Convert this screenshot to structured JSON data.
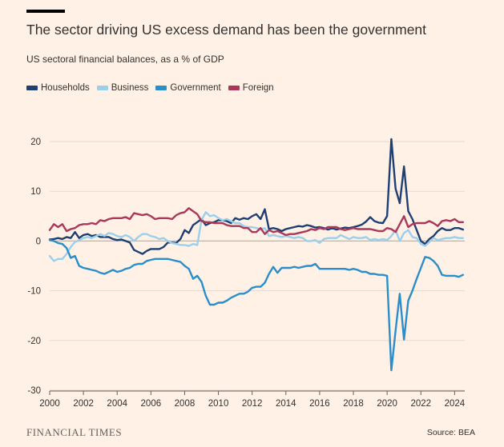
{
  "header": {
    "title": "The sector driving US excess demand has been the government",
    "subtitle": "US sectoral financial balances, as a % of GDP"
  },
  "footer": {
    "logo": "FINANCIAL TIMES",
    "source": "Source: BEA"
  },
  "chart_data": {
    "type": "line",
    "title": "The sector driving US excess demand has been the government",
    "subtitle": "US sectoral financial balances, as a % of GDP",
    "xlim": [
      2000,
      2024.6
    ],
    "ylim": [
      -30,
      25
    ],
    "x_ticks": [
      2000,
      2002,
      2004,
      2006,
      2008,
      2010,
      2012,
      2014,
      2016,
      2018,
      2020,
      2022,
      2024
    ],
    "y_ticks": [
      20,
      10,
      0,
      -10,
      -20,
      -30
    ],
    "grid": true,
    "legend_position": "top-left",
    "series": [
      {
        "name": "Households",
        "color": "#1e3f73",
        "x": [
          2000.0,
          2000.25,
          2000.5,
          2000.75,
          2001.0,
          2001.25,
          2001.5,
          2001.75,
          2002.0,
          2002.25,
          2002.5,
          2002.75,
          2003.0,
          2003.25,
          2003.5,
          2003.75,
          2004.0,
          2004.25,
          2004.5,
          2004.75,
          2005.0,
          2005.25,
          2005.5,
          2005.75,
          2006.0,
          2006.25,
          2006.5,
          2006.75,
          2007.0,
          2007.25,
          2007.5,
          2007.75,
          2008.0,
          2008.25,
          2008.5,
          2008.75,
          2009.0,
          2009.25,
          2009.5,
          2009.75,
          2010.0,
          2010.25,
          2010.5,
          2010.75,
          2011.0,
          2011.25,
          2011.5,
          2011.75,
          2012.0,
          2012.25,
          2012.5,
          2012.75,
          2013.0,
          2013.25,
          2013.5,
          2013.75,
          2014.0,
          2014.25,
          2014.5,
          2014.75,
          2015.0,
          2015.25,
          2015.5,
          2015.75,
          2016.0,
          2016.25,
          2016.5,
          2016.75,
          2017.0,
          2017.25,
          2017.5,
          2017.75,
          2018.0,
          2018.25,
          2018.5,
          2018.75,
          2019.0,
          2019.25,
          2019.5,
          2019.75,
          2020.0,
          2020.25,
          2020.5,
          2020.75,
          2021.0,
          2021.25,
          2021.5,
          2021.75,
          2022.0,
          2022.25,
          2022.5,
          2022.75,
          2023.0,
          2023.25,
          2023.5,
          2023.75,
          2024.0,
          2024.25,
          2024.5
        ],
        "values": [
          0.3,
          0.4,
          0.6,
          0.4,
          0.8,
          0.6,
          1.8,
          0.6,
          1.2,
          1.4,
          1.0,
          1.2,
          0.8,
          0.8,
          0.8,
          0.4,
          0.2,
          0.3,
          0.0,
          -0.3,
          -1.8,
          -2.2,
          -2.6,
          -2.0,
          -1.6,
          -1.6,
          -1.6,
          -1.2,
          -0.3,
          -0.3,
          -0.4,
          0.4,
          2.2,
          1.6,
          3.2,
          3.8,
          4.4,
          3.2,
          3.6,
          3.8,
          4.2,
          4.2,
          4.0,
          3.6,
          4.6,
          4.3,
          4.6,
          4.4,
          5.0,
          5.4,
          4.4,
          6.4,
          2.4,
          2.6,
          2.4,
          2.0,
          2.4,
          2.6,
          2.8,
          3.0,
          2.9,
          3.2,
          3.0,
          2.7,
          2.8,
          2.6,
          2.3,
          2.6,
          2.3,
          2.5,
          2.7,
          2.6,
          2.8,
          3.0,
          3.3,
          3.9,
          4.8,
          4.0,
          3.7,
          3.6,
          5.0,
          20.5,
          10.5,
          7.6,
          15.0,
          6.0,
          4.4,
          2.2,
          0.0,
          -0.6,
          0.4,
          1.0,
          2.0,
          2.6,
          2.2,
          2.2,
          2.6,
          2.6,
          2.3
        ]
      },
      {
        "name": "Business",
        "color": "#9ad0ec",
        "x": [
          2000.0,
          2000.25,
          2000.5,
          2000.75,
          2001.0,
          2001.25,
          2001.5,
          2001.75,
          2002.0,
          2002.25,
          2002.5,
          2002.75,
          2003.0,
          2003.25,
          2003.5,
          2003.75,
          2004.0,
          2004.25,
          2004.5,
          2004.75,
          2005.0,
          2005.25,
          2005.5,
          2005.75,
          2006.0,
          2006.25,
          2006.5,
          2006.75,
          2007.0,
          2007.25,
          2007.5,
          2007.75,
          2008.0,
          2008.25,
          2008.5,
          2008.75,
          2009.0,
          2009.25,
          2009.5,
          2009.75,
          2010.0,
          2010.25,
          2010.5,
          2010.75,
          2011.0,
          2011.25,
          2011.5,
          2011.75,
          2012.0,
          2012.25,
          2012.5,
          2012.75,
          2013.0,
          2013.25,
          2013.5,
          2013.75,
          2014.0,
          2014.25,
          2014.5,
          2014.75,
          2015.0,
          2015.25,
          2015.5,
          2015.75,
          2016.0,
          2016.25,
          2016.5,
          2016.75,
          2017.0,
          2017.25,
          2017.5,
          2017.75,
          2018.0,
          2018.25,
          2018.5,
          2018.75,
          2019.0,
          2019.25,
          2019.5,
          2019.75,
          2020.0,
          2020.25,
          2020.5,
          2020.75,
          2021.0,
          2021.25,
          2021.5,
          2021.75,
          2022.0,
          2022.25,
          2022.5,
          2022.75,
          2023.0,
          2023.25,
          2023.5,
          2023.75,
          2024.0,
          2024.25,
          2024.5
        ],
        "values": [
          -3.0,
          -4.0,
          -3.6,
          -3.6,
          -2.6,
          -1.2,
          -0.2,
          0.2,
          0.6,
          0.8,
          0.6,
          1.0,
          1.4,
          1.0,
          1.6,
          1.4,
          1.0,
          0.8,
          1.2,
          0.8,
          0.0,
          0.8,
          1.4,
          1.4,
          1.0,
          0.8,
          0.4,
          0.6,
          0.0,
          -0.4,
          -0.6,
          -0.8,
          -0.8,
          -1.0,
          -0.6,
          -0.8,
          4.2,
          5.8,
          5.0,
          5.2,
          4.6,
          4.2,
          4.4,
          4.0,
          3.6,
          3.6,
          3.0,
          2.8,
          2.8,
          2.6,
          2.4,
          2.6,
          1.0,
          1.2,
          1.0,
          0.8,
          1.0,
          0.8,
          0.6,
          0.8,
          0.6,
          0.0,
          0.0,
          0.2,
          -0.4,
          0.4,
          0.6,
          0.6,
          0.6,
          1.2,
          0.8,
          0.4,
          0.8,
          0.6,
          0.6,
          0.8,
          0.2,
          0.4,
          0.2,
          0.4,
          0.2,
          1.0,
          2.2,
          0.0,
          1.6,
          2.2,
          0.8,
          0.6,
          -0.6,
          -1.0,
          -0.2,
          0.6,
          0.2,
          0.4,
          0.6,
          0.6,
          0.8,
          0.6,
          0.6
        ]
      },
      {
        "name": "Government",
        "color": "#2a8ecb",
        "x": [
          2000.0,
          2000.25,
          2000.5,
          2000.75,
          2001.0,
          2001.25,
          2001.5,
          2001.75,
          2002.0,
          2002.25,
          2002.5,
          2002.75,
          2003.0,
          2003.25,
          2003.5,
          2003.75,
          2004.0,
          2004.25,
          2004.5,
          2004.75,
          2005.0,
          2005.25,
          2005.5,
          2005.75,
          2006.0,
          2006.25,
          2006.5,
          2006.75,
          2007.0,
          2007.25,
          2007.5,
          2007.75,
          2008.0,
          2008.25,
          2008.5,
          2008.75,
          2009.0,
          2009.25,
          2009.5,
          2009.75,
          2010.0,
          2010.25,
          2010.5,
          2010.75,
          2011.0,
          2011.25,
          2011.5,
          2011.75,
          2012.0,
          2012.25,
          2012.5,
          2012.75,
          2013.0,
          2013.25,
          2013.5,
          2013.75,
          2014.0,
          2014.25,
          2014.5,
          2014.75,
          2015.0,
          2015.25,
          2015.5,
          2015.75,
          2016.0,
          2016.25,
          2016.5,
          2016.75,
          2017.0,
          2017.25,
          2017.5,
          2017.75,
          2018.0,
          2018.25,
          2018.5,
          2018.75,
          2019.0,
          2019.25,
          2019.5,
          2019.75,
          2020.0,
          2020.25,
          2020.5,
          2020.75,
          2021.0,
          2021.25,
          2021.5,
          2021.75,
          2022.0,
          2022.25,
          2022.5,
          2022.75,
          2023.0,
          2023.25,
          2023.5,
          2023.75,
          2024.0,
          2024.25,
          2024.5
        ],
        "values": [
          0.2,
          0.0,
          -0.4,
          -0.6,
          -1.4,
          -3.4,
          -3.0,
          -5.0,
          -5.4,
          -5.6,
          -5.8,
          -6.0,
          -6.4,
          -6.6,
          -6.2,
          -5.8,
          -6.2,
          -6.0,
          -5.6,
          -5.4,
          -4.8,
          -4.6,
          -4.6,
          -4.0,
          -3.8,
          -3.6,
          -3.6,
          -3.6,
          -3.6,
          -3.8,
          -4.0,
          -4.2,
          -5.0,
          -5.6,
          -7.6,
          -7.0,
          -8.2,
          -11.0,
          -12.8,
          -12.8,
          -12.4,
          -12.4,
          -12.0,
          -11.4,
          -11.0,
          -10.6,
          -10.6,
          -10.2,
          -9.4,
          -9.2,
          -9.2,
          -8.4,
          -6.6,
          -5.2,
          -6.4,
          -5.4,
          -5.4,
          -5.4,
          -5.2,
          -5.4,
          -5.2,
          -5.0,
          -5.0,
          -4.6,
          -5.6,
          -5.6,
          -5.6,
          -5.6,
          -5.6,
          -5.6,
          -5.6,
          -5.8,
          -5.6,
          -5.8,
          -6.2,
          -6.2,
          -6.6,
          -6.6,
          -6.8,
          -6.8,
          -7.0,
          -26.0,
          -18.0,
          -10.6,
          -19.8,
          -12.0,
          -10.0,
          -7.6,
          -5.4,
          -3.2,
          -3.4,
          -4.0,
          -5.0,
          -6.8,
          -7.0,
          -7.0,
          -7.0,
          -7.2,
          -6.8
        ]
      },
      {
        "name": "Foreign",
        "color": "#a9385a",
        "x": [
          2000.0,
          2000.25,
          2000.5,
          2000.75,
          2001.0,
          2001.25,
          2001.5,
          2001.75,
          2002.0,
          2002.25,
          2002.5,
          2002.75,
          2003.0,
          2003.25,
          2003.5,
          2003.75,
          2004.0,
          2004.25,
          2004.5,
          2004.75,
          2005.0,
          2005.25,
          2005.5,
          2005.75,
          2006.0,
          2006.25,
          2006.5,
          2006.75,
          2007.0,
          2007.25,
          2007.5,
          2007.75,
          2008.0,
          2008.25,
          2008.5,
          2008.75,
          2009.0,
          2009.25,
          2009.5,
          2009.75,
          2010.0,
          2010.25,
          2010.5,
          2010.75,
          2011.0,
          2011.25,
          2011.5,
          2011.75,
          2012.0,
          2012.25,
          2012.5,
          2012.75,
          2013.0,
          2013.25,
          2013.5,
          2013.75,
          2014.0,
          2014.25,
          2014.5,
          2014.75,
          2015.0,
          2015.25,
          2015.5,
          2015.75,
          2016.0,
          2016.25,
          2016.5,
          2016.75,
          2017.0,
          2017.25,
          2017.5,
          2017.75,
          2018.0,
          2018.25,
          2018.5,
          2018.75,
          2019.0,
          2019.25,
          2019.5,
          2019.75,
          2020.0,
          2020.25,
          2020.5,
          2020.75,
          2021.0,
          2021.25,
          2021.5,
          2021.75,
          2022.0,
          2022.25,
          2022.5,
          2022.75,
          2023.0,
          2023.25,
          2023.5,
          2023.75,
          2024.0,
          2024.25,
          2024.5
        ],
        "values": [
          2.2,
          3.4,
          2.8,
          3.4,
          2.0,
          2.4,
          2.6,
          3.2,
          3.4,
          3.4,
          3.6,
          3.4,
          4.2,
          4.0,
          4.4,
          4.6,
          4.6,
          4.6,
          4.8,
          4.4,
          5.6,
          5.4,
          5.2,
          5.4,
          5.0,
          4.4,
          4.6,
          4.6,
          4.6,
          4.4,
          5.2,
          5.6,
          5.8,
          6.6,
          6.0,
          5.4,
          4.0,
          3.8,
          3.8,
          3.6,
          3.6,
          3.6,
          3.2,
          3.0,
          3.0,
          3.0,
          2.6,
          2.6,
          1.8,
          1.8,
          2.6,
          1.4,
          2.2,
          1.8,
          2.0,
          1.6,
          1.2,
          1.4,
          1.4,
          1.6,
          1.8,
          2.0,
          2.4,
          2.2,
          2.6,
          2.4,
          2.8,
          2.8,
          2.8,
          2.4,
          2.2,
          2.4,
          2.6,
          2.4,
          2.4,
          2.4,
          2.4,
          2.2,
          2.0,
          2.0,
          2.6,
          2.4,
          1.8,
          3.4,
          5.0,
          2.8,
          3.4,
          3.6,
          3.6,
          3.6,
          4.0,
          3.6,
          3.0,
          4.0,
          4.2,
          4.0,
          4.4,
          3.8,
          3.8
        ]
      }
    ]
  }
}
